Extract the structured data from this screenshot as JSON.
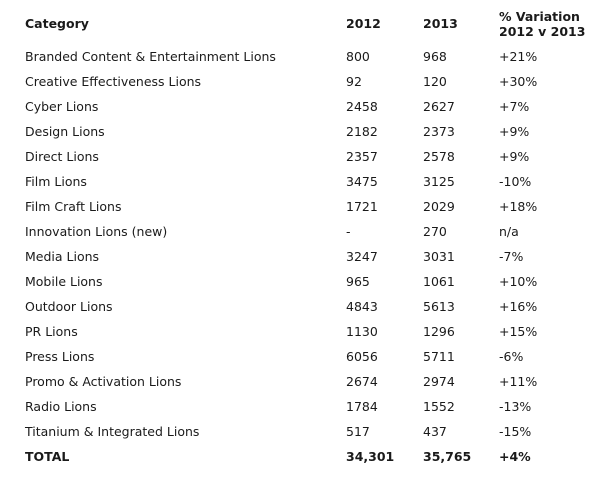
{
  "header": {
    "category": "Category",
    "y2012": "2012",
    "y2013": "2013",
    "variation_line1": "% Variation",
    "variation_line2": "2012 v 2013"
  },
  "rows": [
    {
      "name": "Branded Content & Entertainment Lions",
      "y2012": "800",
      "y2013": "968",
      "variation": "+21%"
    },
    {
      "name": "Creative Effectiveness Lions",
      "y2012": "92",
      "y2013": "120",
      "variation": "+30%"
    },
    {
      "name": "Cyber Lions",
      "y2012": "2458",
      "y2013": "2627",
      "variation": "+7%"
    },
    {
      "name": "Design Lions",
      "y2012": "2182",
      "y2013": "2373",
      "variation": "+9%"
    },
    {
      "name": "Direct Lions",
      "y2012": "2357",
      "y2013": "2578",
      "variation": "+9%"
    },
    {
      "name": "Film Lions",
      "y2012": "3475",
      "y2013": "3125",
      "variation": "-10%"
    },
    {
      "name": "Film Craft Lions",
      "y2012": "1721",
      "y2013": "2029",
      "variation": "+18%"
    },
    {
      "name": "Innovation Lions (new)",
      "y2012": "-",
      "y2013": "270",
      "variation": "n/a"
    },
    {
      "name": "Media Lions",
      "y2012": "3247",
      "y2013": "3031",
      "variation": "-7%"
    },
    {
      "name": "Mobile Lions",
      "y2012": "965",
      "y2013": "1061",
      "variation": "+10%"
    },
    {
      "name": "Outdoor Lions",
      "y2012": "4843",
      "y2013": "5613",
      "variation": "+16%"
    },
    {
      "name": "PR Lions",
      "y2012": "1130",
      "y2013": "1296",
      "variation": "+15%"
    },
    {
      "name": "Press Lions",
      "y2012": "6056",
      "y2013": "5711",
      "variation": "-6%"
    },
    {
      "name": "Promo & Activation Lions",
      "y2012": "2674",
      "y2013": "2974",
      "variation": "+11%"
    },
    {
      "name": "Radio Lions",
      "y2012": "1784",
      "y2013": "1552",
      "variation": "-13%"
    },
    {
      "name": "Titanium & Integrated Lions",
      "y2012": "517",
      "y2013": "437",
      "variation": "-15%"
    }
  ],
  "total": {
    "name": "TOTAL",
    "y2012": "34,301",
    "y2013": "35,765",
    "variation": "+4%"
  }
}
